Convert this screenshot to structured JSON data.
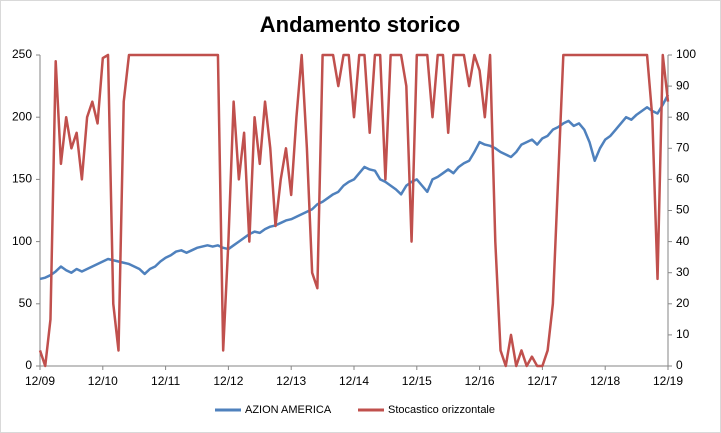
{
  "chart_data": {
    "type": "line",
    "title": "Andamento storico",
    "categories": [
      "12/09",
      null,
      null,
      null,
      null,
      null,
      null,
      null,
      null,
      null,
      null,
      null,
      "12/10",
      null,
      null,
      null,
      null,
      null,
      null,
      null,
      null,
      null,
      null,
      null,
      "12/11",
      null,
      null,
      null,
      null,
      null,
      null,
      null,
      null,
      null,
      null,
      null,
      "12/12",
      null,
      null,
      null,
      null,
      null,
      null,
      null,
      null,
      null,
      null,
      null,
      "12/13",
      null,
      null,
      null,
      null,
      null,
      null,
      null,
      null,
      null,
      null,
      null,
      "12/14",
      null,
      null,
      null,
      null,
      null,
      null,
      null,
      null,
      null,
      null,
      null,
      "12/15",
      null,
      null,
      null,
      null,
      null,
      null,
      null,
      null,
      null,
      null,
      null,
      "12/16",
      null,
      null,
      null,
      null,
      null,
      null,
      null,
      null,
      null,
      null,
      null,
      "12/17",
      null,
      null,
      null,
      null,
      null,
      null,
      null,
      null,
      null,
      null,
      null,
      "12/18",
      null,
      null,
      null,
      null,
      null,
      null,
      null,
      null,
      null,
      null,
      null,
      "12/19"
    ],
    "series": [
      {
        "name": "AZION AMERICA",
        "color": "#4f81bd",
        "values": [
          70,
          71,
          73,
          76,
          80,
          77,
          75,
          78,
          76,
          78,
          80,
          82,
          84,
          86,
          85,
          84,
          83,
          82,
          80,
          78,
          74,
          78,
          80,
          84,
          87,
          89,
          92,
          93,
          91,
          93,
          95,
          96,
          97,
          96,
          97,
          95,
          94,
          97,
          100,
          103,
          106,
          108,
          107,
          110,
          112,
          113,
          115,
          117,
          118,
          120,
          122,
          124,
          126,
          130,
          132,
          135,
          138,
          140,
          145,
          148,
          150,
          155,
          160,
          158,
          157,
          150,
          148,
          145,
          142,
          138,
          145,
          148,
          150,
          145,
          140,
          150,
          152,
          155,
          158,
          155,
          160,
          163,
          165,
          172,
          180,
          178,
          177,
          175,
          172,
          170,
          168,
          172,
          178,
          180,
          182,
          178,
          183,
          185,
          190,
          192,
          195,
          197,
          193,
          195,
          190,
          180,
          165,
          175,
          182,
          185,
          190,
          195,
          200,
          198,
          202,
          205,
          208,
          205,
          203,
          210,
          218
        ]
      },
      {
        "name": "Stocastico orizzontale",
        "color": "#c0504d",
        "axis": "y2",
        "values": [
          5,
          0,
          15,
          98,
          65,
          80,
          70,
          75,
          60,
          80,
          85,
          78,
          99,
          100,
          20,
          5,
          85,
          100,
          100,
          100,
          100,
          100,
          100,
          100,
          100,
          100,
          100,
          100,
          100,
          100,
          100,
          100,
          100,
          100,
          100,
          5,
          40,
          85,
          60,
          75,
          40,
          80,
          65,
          85,
          70,
          45,
          60,
          70,
          55,
          80,
          100,
          70,
          30,
          25,
          100,
          100,
          100,
          90,
          100,
          100,
          80,
          100,
          100,
          75,
          100,
          100,
          60,
          100,
          100,
          100,
          90,
          40,
          100,
          100,
          100,
          80,
          100,
          100,
          75,
          100,
          100,
          100,
          90,
          100,
          95,
          80,
          100,
          40,
          5,
          0,
          10,
          0,
          5,
          0,
          3,
          0,
          0,
          5,
          20,
          60,
          100,
          100,
          100,
          100,
          100,
          100,
          100,
          100,
          100,
          100,
          100,
          100,
          100,
          100,
          100,
          100,
          100,
          80,
          28,
          100,
          85
        ]
      }
    ],
    "ylim": [
      0,
      250
    ],
    "yticks": [
      0,
      50,
      100,
      150,
      200,
      250
    ],
    "y2lim": [
      0,
      100
    ],
    "y2ticks": [
      0,
      10,
      20,
      30,
      40,
      50,
      60,
      70,
      80,
      90,
      100
    ],
    "legend": "bottom",
    "grid": false
  }
}
